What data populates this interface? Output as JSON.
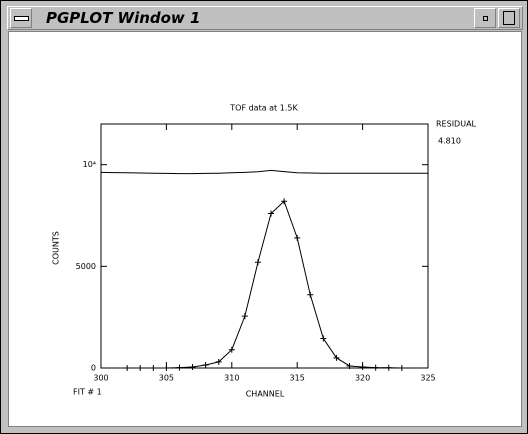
{
  "window": {
    "title": "PGPLOT Window 1"
  },
  "chart_data": {
    "type": "line",
    "title": "TOF data at 1.5K",
    "x_label": "CHANNEL",
    "y_label": "COUNTS",
    "annotations": [
      "FIT #  1",
      "4.810"
    ],
    "xlim": [
      300,
      325
    ],
    "xticks": [
      300,
      305,
      310,
      315,
      320,
      325
    ],
    "ylim": [
      0,
      12000
    ],
    "yticks": [
      0,
      5000,
      {
        "value": 10000,
        "label": "10⁴"
      }
    ],
    "series": [
      {
        "color": "#000000",
        "markers": true,
        "x": [
          302,
          303,
          304,
          305,
          306,
          307,
          308,
          309,
          310,
          311,
          312,
          313,
          314,
          315,
          316,
          317,
          318,
          319,
          320,
          321,
          322,
          323
        ],
        "values": [
          0,
          0,
          0,
          0,
          20,
          50,
          150,
          300,
          900,
          2550,
          5200,
          7600,
          8200,
          6400,
          3600,
          1450,
          500,
          100,
          50,
          20,
          10,
          0
        ]
      },
      {
        "name": "RESIDUAL",
        "color": "#000000",
        "markers": false,
        "x": [
          300,
          301,
          302,
          303,
          304,
          305,
          306,
          307,
          308,
          309,
          310,
          311,
          312,
          313,
          314,
          315,
          316,
          317,
          318,
          319,
          320,
          321,
          322,
          323,
          324,
          325
        ],
        "values": [
          9620,
          9610,
          9600,
          9590,
          9580,
          9570,
          9560,
          9560,
          9570,
          9580,
          9600,
          9620,
          9650,
          9720,
          9660,
          9600,
          9590,
          9580,
          9580,
          9580,
          9580,
          9580,
          9580,
          9580,
          9580,
          9580
        ]
      }
    ]
  }
}
